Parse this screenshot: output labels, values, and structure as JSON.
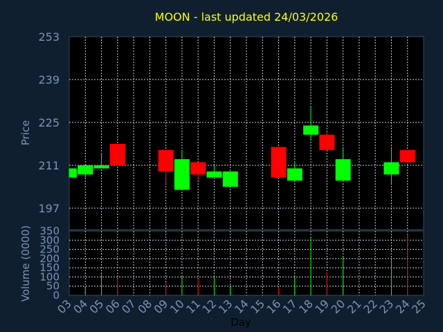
{
  "chart_data": [
    {
      "type": "candlestick",
      "title": "MOON - last updated 24/03/2026",
      "ylabel": "Price",
      "ylim": [
        190,
        253
      ],
      "yticks": [
        197,
        211,
        225,
        239,
        253
      ],
      "grid": true,
      "colors": {
        "up": "#00ff00",
        "down": "#ff0000"
      },
      "x": [
        "03",
        "04",
        "05",
        "06",
        "07",
        "08",
        "09",
        "10",
        "11",
        "12",
        "13",
        "14",
        "15",
        "16",
        "17",
        "18",
        "19",
        "20",
        "21",
        "22",
        "23",
        "24",
        "25"
      ],
      "candles": [
        {
          "day": "03",
          "open": 207,
          "close": 210,
          "high": 210,
          "low": 207
        },
        {
          "day": "04",
          "open": 208,
          "close": 211,
          "high": 211,
          "low": 207
        },
        {
          "day": "05",
          "open": 210,
          "close": 211,
          "high": 215,
          "low": 210
        },
        {
          "day": "06",
          "open": 218,
          "close": 211,
          "high": 218,
          "low": 211
        },
        {
          "day": "09",
          "open": 216,
          "close": 209,
          "high": 216,
          "low": 205
        },
        {
          "day": "10",
          "open": 203,
          "close": 213,
          "high": 216,
          "low": 203
        },
        {
          "day": "11",
          "open": 212,
          "close": 208,
          "high": 212,
          "low": 206
        },
        {
          "day": "12",
          "open": 207,
          "close": 209,
          "high": 211,
          "low": 207
        },
        {
          "day": "13",
          "open": 204,
          "close": 209,
          "high": 209,
          "low": 204
        },
        {
          "day": "16",
          "open": 217,
          "close": 207,
          "high": 217,
          "low": 207
        },
        {
          "day": "17",
          "open": 206,
          "close": 210,
          "high": 212,
          "low": 206
        },
        {
          "day": "18",
          "open": 221,
          "close": 224,
          "high": 230,
          "low": 219
        },
        {
          "day": "19",
          "open": 221,
          "close": 216,
          "high": 222,
          "low": 216
        },
        {
          "day": "20",
          "open": 206,
          "close": 213,
          "high": 217,
          "low": 206
        },
        {
          "day": "23",
          "open": 208,
          "close": 212,
          "high": 217,
          "low": 205
        },
        {
          "day": "24",
          "open": 216,
          "close": 212,
          "high": 216,
          "low": 212
        }
      ]
    },
    {
      "type": "bar",
      "ylabel": "Volume (0000)",
      "xlabel": "Day",
      "ylim": [
        0,
        350
      ],
      "yticks": [
        0,
        50,
        100,
        150,
        200,
        250,
        300,
        350
      ],
      "grid": true,
      "x": [
        "03",
        "04",
        "05",
        "06",
        "07",
        "08",
        "09",
        "10",
        "11",
        "12",
        "13",
        "14",
        "15",
        "16",
        "17",
        "18",
        "19",
        "20",
        "21",
        "22",
        "23",
        "24",
        "25"
      ],
      "bars": [
        {
          "day": "04",
          "value": 45,
          "color": "#00ff00"
        },
        {
          "day": "05",
          "value": 115,
          "color": "#00ff00"
        },
        {
          "day": "06",
          "value": 90,
          "color": "#ff0000"
        },
        {
          "day": "09",
          "value": 70,
          "color": "#ff0000"
        },
        {
          "day": "10",
          "value": 110,
          "color": "#00ff00"
        },
        {
          "day": "11",
          "value": 90,
          "color": "#ff0000"
        },
        {
          "day": "12",
          "value": 100,
          "color": "#00ff00"
        },
        {
          "day": "13",
          "value": 55,
          "color": "#00ff00"
        },
        {
          "day": "16",
          "value": 45,
          "color": "#ff0000"
        },
        {
          "day": "17",
          "value": 100,
          "color": "#00ff00"
        },
        {
          "day": "18",
          "value": 320,
          "color": "#00ff00"
        },
        {
          "day": "19",
          "value": 125,
          "color": "#ff0000"
        },
        {
          "day": "20",
          "value": 210,
          "color": "#00ff00"
        },
        {
          "day": "23",
          "value": 195,
          "color": "#00ff00"
        },
        {
          "day": "24",
          "value": 330,
          "color": "#ff0000"
        }
      ]
    }
  ]
}
